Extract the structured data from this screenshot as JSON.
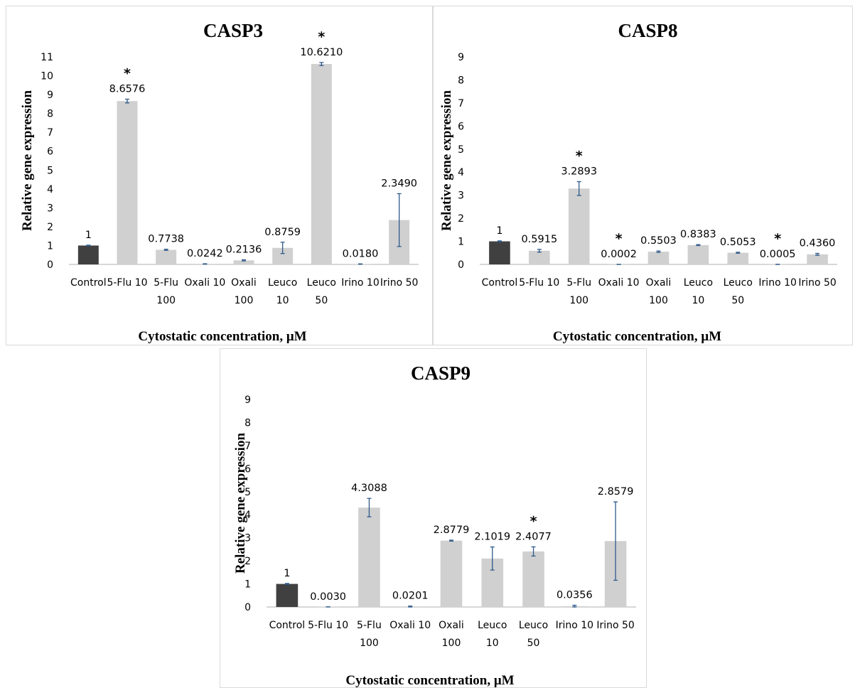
{
  "colors": {
    "control": "#404040",
    "treatment": "#d0d0d0",
    "error_bar": "#2e5a8a",
    "axis": "#bfbfbf"
  },
  "chart_data": [
    {
      "type": "bar",
      "title": "CASP3",
      "xlabel": "Cytostatic concentration, μM",
      "ylabel": "Relative gene expression",
      "ylim": [
        0,
        11
      ],
      "yticks": [
        0,
        1,
        2,
        3,
        4,
        5,
        6,
        7,
        8,
        9,
        10,
        11
      ],
      "categories": [
        "Control",
        "5-Flu 10",
        "5-Flu 100",
        "Oxali 10",
        "Oxali 100",
        "Leuco 10",
        "Leuco 50",
        "Irino 10",
        "Irino 50"
      ],
      "category_lines": [
        [
          "Control"
        ],
        [
          "5-Flu 10"
        ],
        [
          "5-Flu",
          "100"
        ],
        [
          "Oxali 10"
        ],
        [
          "Oxali",
          "100"
        ],
        [
          "Leuco",
          "10"
        ],
        [
          "Leuco",
          "50"
        ],
        [
          "Irino 10"
        ],
        [
          "Irino 50"
        ]
      ],
      "values": [
        1,
        8.6576,
        0.7738,
        0.0242,
        0.2136,
        0.8759,
        10.621,
        0.018,
        2.349
      ],
      "labels": [
        "1",
        "8.6576",
        "0.7738",
        "0.0242",
        "0.2136",
        "0.8759",
        "10.6210",
        "0.0180",
        "2.3490"
      ],
      "errors": [
        0.02,
        0.1,
        0.03,
        0.01,
        0.03,
        0.3,
        0.08,
        0.01,
        1.4
      ],
      "significant": [
        false,
        true,
        false,
        false,
        false,
        false,
        true,
        false,
        false
      ],
      "significance_marker": "*"
    },
    {
      "type": "bar",
      "title": "CASP8",
      "xlabel": "Cytostatic concentration, μM",
      "ylabel": "Relative gene expression",
      "ylim": [
        0,
        9
      ],
      "yticks": [
        0,
        1,
        2,
        3,
        4,
        5,
        6,
        7,
        8,
        9
      ],
      "categories": [
        "Control",
        "5-Flu 10",
        "5-Flu 100",
        "Oxali 10",
        "Oxali 100",
        "Leuco 10",
        "Leuco 50",
        "Irino 10",
        "Irino 50"
      ],
      "category_lines": [
        [
          "Control"
        ],
        [
          "5-Flu 10"
        ],
        [
          "5-Flu",
          "100"
        ],
        [
          "Oxali 10"
        ],
        [
          "Oxali",
          "100"
        ],
        [
          "Leuco",
          "10"
        ],
        [
          "Leuco",
          "50"
        ],
        [
          "Irino 10"
        ],
        [
          "Irino 50"
        ]
      ],
      "values": [
        1,
        0.5915,
        3.2893,
        0.0002,
        0.5503,
        0.8383,
        0.5053,
        0.0005,
        0.436
      ],
      "labels": [
        "1",
        "0.5915",
        "3.2893",
        "0.0002",
        "0.5503",
        "0.8383",
        "0.5053",
        "0.0005",
        "0.4360"
      ],
      "errors": [
        0.02,
        0.06,
        0.3,
        0.0,
        0.03,
        0.02,
        0.02,
        0.0,
        0.04
      ],
      "significant": [
        false,
        false,
        true,
        true,
        false,
        false,
        false,
        true,
        false
      ],
      "significance_marker": "*"
    },
    {
      "type": "bar",
      "title": "CASP9",
      "xlabel": "Cytostatic concentration, μM",
      "ylabel": "Relative gene expression",
      "ylim": [
        0,
        9
      ],
      "yticks": [
        0,
        1,
        2,
        3,
        4,
        5,
        6,
        7,
        8,
        9
      ],
      "categories": [
        "Control",
        "5-Flu 10",
        "5-Flu 100",
        "Oxali 10",
        "Oxali 100",
        "Leuco 10",
        "Leuco 50",
        "Irino 10",
        "Irino 50"
      ],
      "category_lines": [
        [
          "Control"
        ],
        [
          "5-Flu 10"
        ],
        [
          "5-Flu",
          "100"
        ],
        [
          "Oxali 10"
        ],
        [
          "Oxali",
          "100"
        ],
        [
          "Leuco",
          "10"
        ],
        [
          "Leuco",
          "50"
        ],
        [
          "Irino 10"
        ],
        [
          "Irino 50"
        ]
      ],
      "values": [
        1,
        0.003,
        4.3088,
        0.0201,
        2.8779,
        2.1019,
        2.4077,
        0.0356,
        2.8579
      ],
      "labels": [
        "1",
        "0.0030",
        "4.3088",
        "0.0201",
        "2.8779",
        "2.1019",
        "2.4077",
        "0.0356",
        "2.8579"
      ],
      "errors": [
        0.02,
        0.0,
        0.4,
        0.02,
        0.02,
        0.5,
        0.2,
        0.04,
        1.7
      ],
      "significant": [
        false,
        false,
        false,
        false,
        false,
        false,
        true,
        false,
        false
      ],
      "significance_marker": "*"
    }
  ]
}
